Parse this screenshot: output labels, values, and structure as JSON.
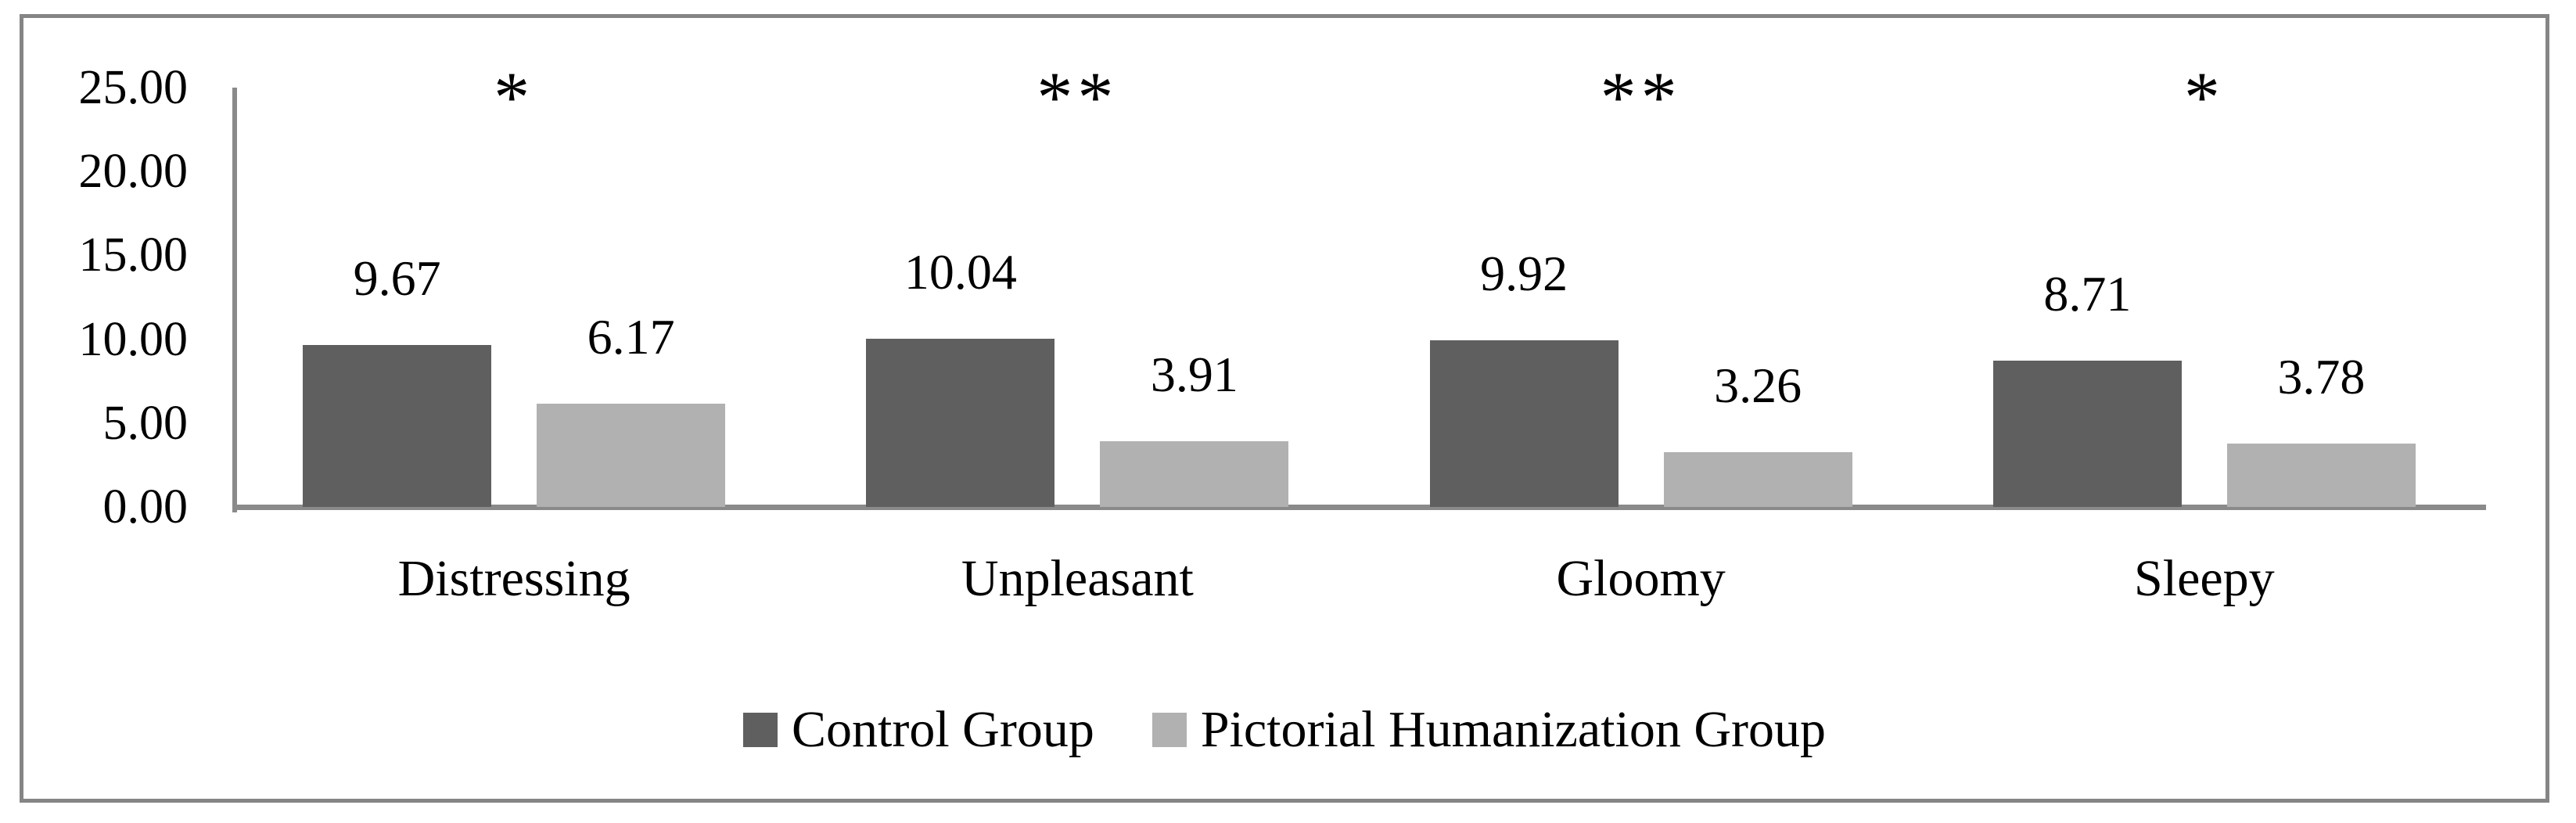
{
  "chart_data": {
    "type": "bar",
    "title": "",
    "xlabel": "",
    "ylabel": "",
    "categories": [
      "Distressing",
      "Unpleasant",
      "Gloomy",
      "Sleepy"
    ],
    "series": [
      {
        "name": "Control Group",
        "color": "#5f5f5f",
        "values": [
          9.67,
          10.04,
          9.92,
          8.71
        ]
      },
      {
        "name": "Pictorial Humanization Group",
        "color": "#b1b1b1",
        "values": [
          6.17,
          3.91,
          3.26,
          3.78
        ]
      }
    ],
    "data_labels": [
      [
        "9.67",
        "10.04",
        "9.92",
        "8.71"
      ],
      [
        "6.17",
        "3.91",
        "3.26",
        "3.78"
      ]
    ],
    "significance_markers": [
      "*",
      "**",
      "**",
      "*"
    ],
    "y_axis": {
      "min": 0,
      "max": 25,
      "step": 5,
      "tick_labels": [
        "0.00",
        "5.00",
        "10.00",
        "15.00",
        "20.00",
        "25.00"
      ]
    },
    "grid": false,
    "legend_position": "bottom",
    "colors": {
      "axis_line": "#8a8a8a",
      "outer_border": "#858585",
      "text": "#000000",
      "background": "#ffffff"
    }
  }
}
